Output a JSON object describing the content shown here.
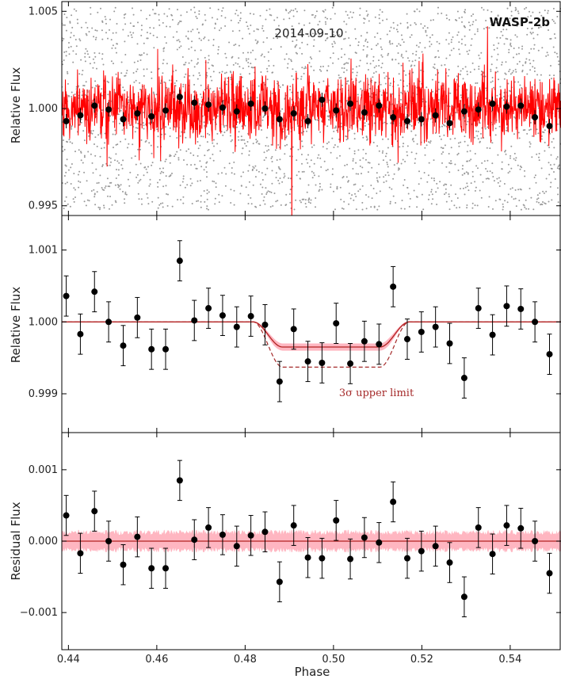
{
  "chart_data": {
    "type": "scatter",
    "xlabel": "Phase",
    "xlim": [
      0.4385,
      0.5515
    ],
    "xticks": [
      0.44,
      0.46,
      0.48,
      0.5,
      0.52,
      0.54
    ],
    "xtick_labels": [
      "0.44",
      "0.46",
      "0.48",
      "0.50",
      "0.52",
      "0.54"
    ],
    "colors": {
      "binned": "#000000",
      "raw_points": "#999999",
      "unbinned_flux": "#ff0000",
      "model": "#b22222",
      "band": "#ffb6c1",
      "limit": "#a52a2a"
    },
    "panels": [
      {
        "id": "raw",
        "ylabel": "Relative Flux",
        "ylim": [
          0.9945,
          1.0055
        ],
        "yticks": [
          0.995,
          1.0,
          1.005
        ],
        "ytick_labels": [
          "0.995",
          "1.000",
          "1.005"
        ],
        "annotations": {
          "date": "2014-09-10",
          "planet": "WASP-2b"
        },
        "raw_scatter_range": [
          0.9948,
          1.0052
        ],
        "unbinned_band": {
          "center": 1.0,
          "halfwidth": 0.0017
        },
        "binned": {
          "x": [
            0.4395,
            0.4427,
            0.4459,
            0.4491,
            0.4524,
            0.4556,
            0.4588,
            0.462,
            0.4652,
            0.4685,
            0.4717,
            0.4749,
            0.4781,
            0.4813,
            0.4845,
            0.4878,
            0.491,
            0.4942,
            0.4974,
            0.5006,
            0.5038,
            0.507,
            0.5103,
            0.5135,
            0.5167,
            0.5199,
            0.5231,
            0.5263,
            0.5296,
            0.5328,
            0.536,
            0.5392,
            0.5424,
            0.5456,
            0.5489
          ],
          "y": [
            0.99935,
            0.99965,
            1.00015,
            0.99995,
            0.99945,
            0.99975,
            0.9996,
            0.9999,
            1.0006,
            1.0003,
            1.0002,
            1.00005,
            0.99985,
            1.00025,
            1.0,
            0.99945,
            0.99975,
            0.99935,
            1.00045,
            0.9999,
            1.00025,
            0.9998,
            1.00015,
            0.99955,
            0.99935,
            0.99945,
            0.99965,
            0.99925,
            0.99985,
            0.99995,
            1.00025,
            1.0001,
            1.00015,
            0.99955,
            0.9991
          ]
        }
      },
      {
        "id": "binned",
        "ylabel": "Relative Flux",
        "ylim": [
          0.99846,
          1.00148
        ],
        "yticks": [
          0.999,
          1.0,
          1.001
        ],
        "ytick_labels": [
          "0.999",
          "1.000",
          "1.001"
        ],
        "annotations": {
          "limit_label": "3σ upper limit"
        },
        "transit": {
          "t1": 0.4818,
          "t2": 0.4885,
          "t3": 0.5105,
          "t4": 0.5172,
          "model_depth": 0.00035,
          "band_halfwidth": 5e-05,
          "limit_depth": 0.00063
        },
        "points": {
          "x": [
            0.4395,
            0.4427,
            0.4459,
            0.4491,
            0.4524,
            0.4556,
            0.4588,
            0.462,
            0.4652,
            0.4685,
            0.4717,
            0.4749,
            0.4781,
            0.4813,
            0.4845,
            0.4878,
            0.491,
            0.4942,
            0.4974,
            0.5006,
            0.5038,
            0.507,
            0.5103,
            0.5135,
            0.5167,
            0.5199,
            0.5231,
            0.5263,
            0.5296,
            0.5328,
            0.536,
            0.5392,
            0.5424,
            0.5456,
            0.5489
          ],
          "y": [
            1.00036,
            0.99983,
            1.00042,
            1.0,
            0.99967,
            1.00006,
            0.99962,
            0.99962,
            1.00085,
            1.00002,
            1.00019,
            1.00009,
            0.99993,
            1.00008,
            0.99996,
            0.99917,
            0.9999,
            0.99945,
            0.99943,
            0.99998,
            0.99942,
            0.99973,
            0.99969,
            1.00049,
            0.99976,
            0.99986,
            0.99993,
            0.9997,
            0.99922,
            1.00019,
            0.99982,
            1.00022,
            1.00018,
            1.0,
            0.99955
          ],
          "err": 0.00028
        }
      },
      {
        "id": "residual",
        "ylabel": "Residual Flux",
        "ylim": [
          -0.00152,
          0.00152
        ],
        "yticks": [
          -0.001,
          0.0,
          0.001
        ],
        "ytick_labels": [
          "−0.001",
          "0.000",
          "0.001"
        ],
        "band_halfwidth": 0.00016,
        "points": {
          "x": [
            0.4395,
            0.4427,
            0.4459,
            0.4491,
            0.4524,
            0.4556,
            0.4588,
            0.462,
            0.4652,
            0.4685,
            0.4717,
            0.4749,
            0.4781,
            0.4813,
            0.4845,
            0.4878,
            0.491,
            0.4942,
            0.4974,
            0.5006,
            0.5038,
            0.507,
            0.5103,
            0.5135,
            0.5167,
            0.5199,
            0.5231,
            0.5263,
            0.5296,
            0.5328,
            0.536,
            0.5392,
            0.5424,
            0.5456,
            0.5489
          ],
          "y": [
            0.00036,
            -0.00017,
            0.00042,
            0.0,
            -0.00033,
            6e-05,
            -0.00038,
            -0.00038,
            0.00085,
            2e-05,
            0.00019,
            9e-05,
            -7e-05,
            8e-05,
            0.00013,
            -0.00057,
            0.00022,
            -0.00023,
            -0.00024,
            0.00029,
            -0.00025,
            5e-05,
            -2e-05,
            0.00055,
            -0.00024,
            -0.00014,
            -7e-05,
            -0.0003,
            -0.00078,
            0.00019,
            -0.00018,
            0.00022,
            0.00018,
            0.0,
            -0.00045
          ],
          "err": 0.00028
        }
      }
    ]
  }
}
